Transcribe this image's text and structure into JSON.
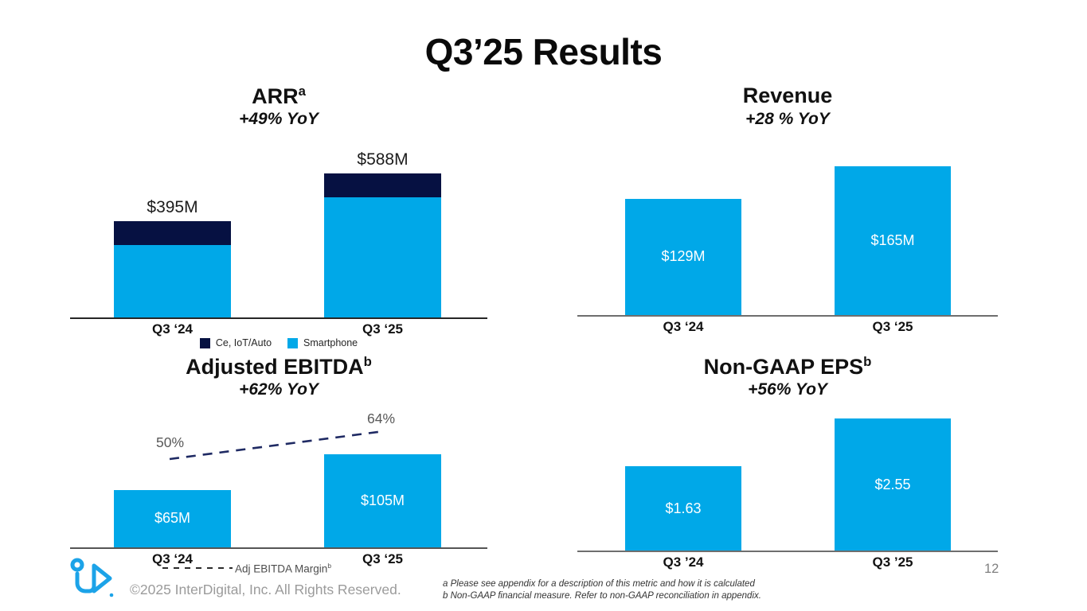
{
  "slide": {
    "title": "Q3’25 Results",
    "page_number": "12",
    "copyright": "©2025 InterDigital, Inc. All Rights Reserved.",
    "footnote_a": "a Please see appendix for a description of this metric and how it is calculated",
    "footnote_b": "b Non-GAAP financial measure. Refer to non-GAAP reconciliation in appendix."
  },
  "colors": {
    "bar_blue": "#00A8E8",
    "bar_navy": "#061142",
    "line_navy": "#1F2A63",
    "logo_blue": "#1CA3E8"
  },
  "chart_data": [
    {
      "id": "arr",
      "type": "bar",
      "stacked": true,
      "title": "ARR",
      "title_sup": "a",
      "subtitle": "+49% YoY",
      "categories": [
        "Q3 ‘24",
        "Q3 ‘25"
      ],
      "totals": [
        395,
        588
      ],
      "total_labels": [
        "$395M",
        "$588M"
      ],
      "series": [
        {
          "name": "Ce, IoT/Auto",
          "color": "#061142",
          "values": [
            98,
            98
          ]
        },
        {
          "name": "Smartphone",
          "color": "#00A8E8",
          "values": [
            297,
            490
          ]
        }
      ],
      "legend": [
        {
          "label": "Ce, IoT/Auto",
          "color": "#061142"
        },
        {
          "label": "Smartphone",
          "color": "#00A8E8"
        }
      ]
    },
    {
      "id": "revenue",
      "type": "bar",
      "title": "Revenue",
      "subtitle": "+28 % YoY",
      "categories": [
        "Q3 ‘24",
        "Q3 ‘25"
      ],
      "values": [
        129,
        165
      ],
      "value_labels": [
        "$129M",
        "$165M"
      ]
    },
    {
      "id": "adjusted-ebitda",
      "type": "bar",
      "title": "Adjusted EBITDA",
      "title_sup": "b",
      "subtitle": "+62% YoY",
      "categories": [
        "Q3 ‘24",
        "Q3 ‘25"
      ],
      "values": [
        65,
        105
      ],
      "value_labels": [
        "$65M",
        "$105M"
      ],
      "margin_line": {
        "name": "Adj EBITDA Margin",
        "name_sup": "b",
        "values": [
          50,
          64
        ],
        "labels": [
          "50%",
          "64%"
        ]
      }
    },
    {
      "id": "non-gaap-eps",
      "type": "bar",
      "title": "Non-GAAP EPS",
      "title_sup": "b",
      "subtitle": "+56% YoY",
      "categories": [
        "Q3 ’24",
        "Q3 ’25"
      ],
      "values": [
        1.63,
        2.55
      ],
      "value_labels": [
        "$1.63",
        "$2.55"
      ]
    }
  ]
}
